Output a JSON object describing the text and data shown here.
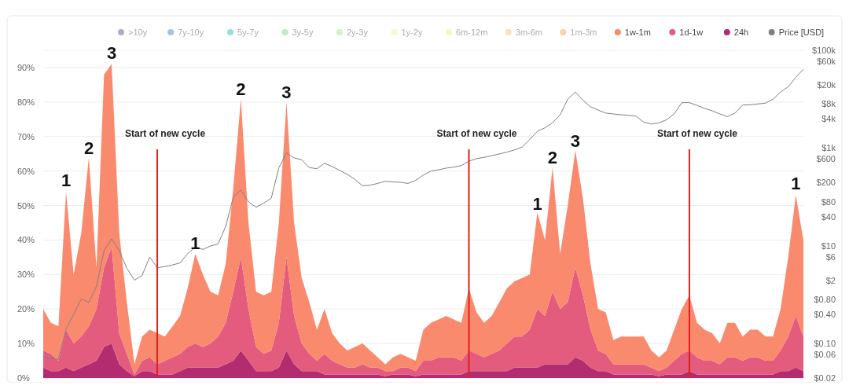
{
  "chart_data": {
    "type": "area",
    "stacked": true,
    "ylim": [
      0,
      95
    ],
    "yticks": [
      {
        "value": 0,
        "label": "0%"
      },
      {
        "value": 10,
        "label": "10%"
      },
      {
        "value": 20,
        "label": "20%"
      },
      {
        "value": 30,
        "label": "30%"
      },
      {
        "value": 40,
        "label": "40%"
      },
      {
        "value": 50,
        "label": "50%"
      },
      {
        "value": 60,
        "label": "60%"
      },
      {
        "value": 70,
        "label": "70%"
      },
      {
        "value": 80,
        "label": "80%"
      },
      {
        "value": 90,
        "label": "90%"
      }
    ],
    "y2lim": [
      0.02,
      100000
    ],
    "log": "y2",
    "y2ticks": [
      {
        "value": 0.02,
        "label": "$0.02"
      },
      {
        "value": 0.06,
        "label": "$0.06"
      },
      {
        "value": 0.1,
        "label": "$0.10"
      },
      {
        "value": 0.4,
        "label": "$0.40"
      },
      {
        "value": 0.8,
        "label": "$0.80"
      },
      {
        "value": 2,
        "label": "$2"
      },
      {
        "value": 6,
        "label": "$6"
      },
      {
        "value": 10,
        "label": "$10"
      },
      {
        "value": 40,
        "label": "$40"
      },
      {
        "value": 80,
        "label": "$80"
      },
      {
        "value": 200,
        "label": "$200"
      },
      {
        "value": 600,
        "label": "$600"
      },
      {
        "value": 1000,
        "label": "$1k"
      },
      {
        "value": 4000,
        "label": "$4k"
      },
      {
        "value": 8000,
        "label": "$8k"
      },
      {
        "value": 20000,
        "label": "$20k"
      },
      {
        "value": 60000,
        "label": "$60k"
      },
      {
        "value": 100000,
        "label": "$100k"
      }
    ],
    "tick_labels": "y",
    "grid": "y",
    "legend": "top",
    "categories": [
      null,
      null,
      null,
      null,
      null,
      null,
      null,
      null,
      null,
      null,
      null,
      null,
      null,
      null,
      null,
      null,
      null,
      null,
      null,
      null,
      null,
      null,
      null,
      null,
      null,
      null,
      null,
      null,
      null,
      null,
      null,
      null,
      null,
      null,
      null,
      null,
      null,
      null,
      null,
      null,
      null,
      null,
      null,
      null,
      null,
      null,
      null,
      null,
      null,
      null,
      null,
      null,
      null,
      null,
      null,
      null,
      null,
      null,
      null,
      null,
      null,
      null,
      null,
      null,
      null,
      null,
      null,
      null,
      null,
      null,
      null,
      null,
      null,
      null,
      null,
      null,
      null,
      null,
      null,
      null,
      null,
      null,
      null,
      null,
      null,
      null,
      null,
      null,
      null,
      null,
      null,
      null,
      null,
      null,
      null,
      null,
      null,
      null,
      null,
      null,
      null
    ],
    "series": [
      {
        "name": "24h",
        "color": "#b42c70",
        "values": [
          3,
          2,
          2,
          3,
          2,
          3,
          4,
          5,
          9,
          10,
          4,
          2,
          0.5,
          2,
          2,
          1,
          1,
          1,
          2,
          3,
          3,
          3,
          3,
          3,
          4,
          5,
          8,
          5,
          2,
          2,
          2,
          3,
          8,
          4,
          2,
          2,
          2,
          1,
          1,
          1,
          1,
          1,
          1,
          1,
          1,
          0.5,
          1,
          1,
          1,
          0.5,
          1,
          1,
          1,
          1,
          1,
          1,
          2,
          2,
          2,
          2,
          2,
          2,
          3,
          3,
          3,
          3,
          4,
          4,
          4,
          4,
          6,
          5,
          3,
          2,
          2,
          1,
          1,
          1,
          1,
          1,
          1,
          0.5,
          1,
          1,
          1,
          2,
          1,
          1,
          1,
          1,
          1,
          1,
          1,
          1,
          1,
          1,
          1,
          2,
          2,
          3,
          2
        ]
      },
      {
        "name": "1d-1w",
        "color": "#e35c7d",
        "values": [
          5,
          5,
          3,
          11,
          8,
          9,
          11,
          15,
          23,
          28,
          9,
          5,
          0.5,
          3,
          4,
          3,
          4,
          5,
          5,
          6,
          7,
          6,
          7,
          9,
          12,
          20,
          27,
          15,
          7,
          5,
          6,
          13,
          27,
          14,
          8,
          5,
          3,
          6,
          4,
          3,
          2,
          2,
          3,
          2,
          2,
          1.5,
          1,
          2,
          2,
          1.5,
          4,
          4,
          5,
          5,
          5,
          4,
          6,
          5,
          4,
          5,
          6,
          8,
          9,
          9,
          11,
          17,
          14,
          21,
          16,
          18,
          26,
          19,
          11,
          6,
          5,
          3,
          3,
          3,
          3,
          3,
          2,
          1.5,
          2,
          4,
          6,
          6,
          5,
          4,
          4,
          3,
          5,
          5,
          4,
          5,
          5,
          4,
          4,
          6,
          10,
          15,
          10
        ]
      },
      {
        "name": "1w-1m",
        "color": "#fa8a6e",
        "values": [
          12,
          9,
          10,
          40,
          20,
          30,
          49,
          12,
          56,
          53,
          29,
          15,
          3,
          7,
          8,
          9,
          7,
          9,
          11,
          17,
          26,
          21,
          15,
          12,
          17,
          30,
          46,
          25,
          16,
          17,
          17,
          29,
          45,
          27,
          19,
          15,
          9,
          13,
          8,
          6,
          5,
          6,
          6,
          5,
          3,
          2,
          4,
          4,
          3,
          3,
          9,
          11,
          11,
          12,
          11,
          11,
          18,
          12,
          10,
          11,
          14,
          16,
          16,
          17,
          16,
          28,
          22,
          36,
          16,
          28,
          34,
          28,
          19,
          12,
          12,
          7,
          8,
          8,
          8,
          8,
          5,
          4,
          5,
          9,
          13,
          16,
          10,
          9,
          8,
          6,
          10,
          10,
          7,
          8,
          8,
          7,
          7,
          12,
          23,
          35,
          28
        ]
      },
      {
        "name": "1m-3m",
        "color": "#f59a40",
        "values": [
          null,
          null,
          null,
          null,
          null,
          null,
          null,
          null,
          null,
          null,
          null,
          null,
          null,
          null,
          null,
          null,
          null,
          null,
          null,
          null,
          null,
          null,
          null,
          null,
          null,
          null,
          null,
          null,
          null,
          null,
          null,
          null,
          null,
          null,
          null,
          null,
          null,
          null,
          null,
          null,
          null,
          null,
          null,
          null,
          null,
          null,
          null,
          null,
          null,
          null,
          null,
          null,
          null,
          null,
          null,
          null,
          null,
          null,
          null,
          null,
          null,
          null,
          null,
          null,
          null,
          null,
          null,
          null,
          null,
          null,
          null,
          null,
          null,
          null,
          null,
          null,
          null,
          null,
          null,
          null,
          null,
          null,
          null,
          null,
          null,
          null,
          null,
          null,
          null,
          null,
          null,
          null,
          null,
          null,
          null,
          null,
          null,
          null,
          null,
          null,
          null
        ]
      },
      {
        "name": "3m-6m",
        "color": "#f8c060",
        "values": [
          null,
          null,
          null,
          null,
          null,
          null,
          null,
          null,
          null,
          null,
          null,
          null,
          null,
          null,
          null,
          null,
          null,
          null,
          null,
          null,
          null,
          null,
          null,
          null,
          null,
          null,
          null,
          null,
          null,
          null,
          null,
          null,
          null,
          null,
          null,
          null,
          null,
          null,
          null,
          null,
          null,
          null,
          null,
          null,
          null,
          null,
          null,
          null,
          null,
          null,
          null,
          null,
          null,
          null,
          null,
          null,
          null,
          null,
          null,
          null,
          null,
          null,
          null,
          null,
          null,
          null,
          null,
          null,
          null,
          null,
          null,
          null,
          null,
          null,
          null,
          null,
          null,
          null,
          null,
          null,
          null,
          null,
          null,
          null,
          null,
          null,
          null,
          null,
          null,
          null,
          null,
          null,
          null,
          null,
          null,
          null,
          null,
          null,
          null,
          null,
          null
        ]
      },
      {
        "name": "6m-12m",
        "color": "#f8e878",
        "values": [
          null,
          null,
          null,
          null,
          null,
          null,
          null,
          null,
          null,
          null,
          null,
          null,
          null,
          null,
          null,
          null,
          null,
          null,
          null,
          null,
          null,
          null,
          null,
          null,
          null,
          null,
          null,
          null,
          null,
          null,
          null,
          null,
          null,
          null,
          null,
          null,
          null,
          null,
          null,
          null,
          null,
          null,
          null,
          null,
          null,
          null,
          null,
          null,
          null,
          null,
          null,
          null,
          null,
          null,
          null,
          null,
          null,
          null,
          null,
          null,
          null,
          null,
          null,
          null,
          null,
          null,
          null,
          null,
          null,
          null,
          null,
          null,
          null,
          null,
          null,
          null,
          null,
          null,
          null,
          null,
          null,
          null,
          null,
          null,
          null,
          null,
          null,
          null,
          null,
          null,
          null,
          null,
          null,
          null,
          null,
          null,
          null,
          null,
          null,
          null,
          null
        ]
      },
      {
        "name": "1y-2y",
        "color": "#e8f590",
        "values": [
          null,
          null,
          null,
          null,
          null,
          null,
          null,
          null,
          null,
          null,
          null,
          null,
          null,
          null,
          null,
          null,
          null,
          null,
          null,
          null,
          null,
          null,
          null,
          null,
          null,
          null,
          null,
          null,
          null,
          null,
          null,
          null,
          null,
          null,
          null,
          null,
          null,
          null,
          null,
          null,
          null,
          null,
          null,
          null,
          null,
          null,
          null,
          null,
          null,
          null,
          null,
          null,
          null,
          null,
          null,
          null,
          null,
          null,
          null,
          null,
          null,
          null,
          null,
          null,
          null,
          null,
          null,
          null,
          null,
          null,
          null,
          null,
          null,
          null,
          null,
          null,
          null,
          null,
          null,
          null,
          null,
          null,
          null,
          null,
          null,
          null,
          null,
          null,
          null,
          null,
          null,
          null,
          null,
          null,
          null,
          null,
          null,
          null,
          null,
          null,
          null
        ]
      },
      {
        "name": "2y-3y",
        "color": "#a8e07a",
        "values": [
          null,
          null,
          null,
          null,
          null,
          null,
          null,
          null,
          null,
          null,
          null,
          null,
          null,
          null,
          null,
          null,
          null,
          null,
          null,
          null,
          null,
          null,
          null,
          null,
          null,
          null,
          null,
          null,
          null,
          null,
          null,
          null,
          null,
          null,
          null,
          null,
          null,
          null,
          null,
          null,
          null,
          null,
          null,
          null,
          null,
          null,
          null,
          null,
          null,
          null,
          null,
          null,
          null,
          null,
          null,
          null,
          null,
          null,
          null,
          null,
          null,
          null,
          null,
          null,
          null,
          null,
          null,
          null,
          null,
          null,
          null,
          null,
          null,
          null,
          null,
          null,
          null,
          null,
          null,
          null,
          null,
          null,
          null,
          null,
          null,
          null,
          null,
          null,
          null,
          null,
          null,
          null,
          null,
          null,
          null,
          null,
          null,
          null,
          null,
          null,
          null
        ]
      },
      {
        "name": "3y-5y",
        "color": "#6ed38a",
        "values": [
          null,
          null,
          null,
          null,
          null,
          null,
          null,
          null,
          null,
          null,
          null,
          null,
          null,
          null,
          null,
          null,
          null,
          null,
          null,
          null,
          null,
          null,
          null,
          null,
          null,
          null,
          null,
          null,
          null,
          null,
          null,
          null,
          null,
          null,
          null,
          null,
          null,
          null,
          null,
          null,
          null,
          null,
          null,
          null,
          null,
          null,
          null,
          null,
          null,
          null,
          null,
          null,
          null,
          null,
          null,
          null,
          null,
          null,
          null,
          null,
          null,
          null,
          null,
          null,
          null,
          null,
          null,
          null,
          null,
          null,
          null,
          null,
          null,
          null,
          null,
          null,
          null,
          null,
          null,
          null,
          null,
          null,
          null,
          null,
          null,
          null,
          null,
          null,
          null,
          null,
          null,
          null,
          null,
          null,
          null,
          null,
          null,
          null,
          null,
          null,
          null
        ]
      },
      {
        "name": "5y-7y",
        "color": "#1fb3b0",
        "values": [
          null,
          null,
          null,
          null,
          null,
          null,
          null,
          null,
          null,
          null,
          null,
          null,
          null,
          null,
          null,
          null,
          null,
          null,
          null,
          null,
          null,
          null,
          null,
          null,
          null,
          null,
          null,
          null,
          null,
          null,
          null,
          null,
          null,
          null,
          null,
          null,
          null,
          null,
          null,
          null,
          null,
          null,
          null,
          null,
          null,
          null,
          null,
          null,
          null,
          null,
          null,
          null,
          null,
          null,
          null,
          null,
          null,
          null,
          null,
          null,
          null,
          null,
          null,
          null,
          null,
          null,
          null,
          null,
          null,
          null,
          null,
          null,
          null,
          null,
          null,
          null,
          null,
          null,
          null,
          null,
          null,
          null,
          null,
          null,
          null,
          null,
          null,
          null,
          null,
          null,
          null,
          null,
          null,
          null,
          null,
          null,
          null,
          null,
          null,
          null,
          null
        ]
      },
      {
        "name": "7y-10y",
        "color": "#2f7fc1",
        "values": [
          null,
          null,
          null,
          null,
          null,
          null,
          null,
          null,
          null,
          null,
          null,
          null,
          null,
          null,
          null,
          null,
          null,
          null,
          null,
          null,
          null,
          null,
          null,
          null,
          null,
          null,
          null,
          null,
          null,
          null,
          null,
          null,
          null,
          null,
          null,
          null,
          null,
          null,
          null,
          null,
          null,
          null,
          null,
          null,
          null,
          null,
          null,
          null,
          null,
          null,
          null,
          null,
          null,
          null,
          null,
          null,
          null,
          null,
          null,
          null,
          null,
          null,
          null,
          null,
          null,
          null,
          null,
          null,
          null,
          null,
          null,
          null,
          null,
          null,
          null,
          null,
          null,
          null,
          null,
          null,
          null,
          null,
          null,
          null,
          null,
          null,
          null,
          null,
          null,
          null,
          null,
          null,
          null,
          null,
          null,
          null,
          null,
          null,
          null,
          null,
          null
        ]
      },
      {
        "name": ">10y",
        "color": "#5b3fa0",
        "values": [
          null,
          null,
          null,
          null,
          null,
          null,
          null,
          null,
          null,
          null,
          null,
          null,
          null,
          null,
          null,
          null,
          null,
          null,
          null,
          null,
          null,
          null,
          null,
          null,
          null,
          null,
          null,
          null,
          null,
          null,
          null,
          null,
          null,
          null,
          null,
          null,
          null,
          null,
          null,
          null,
          null,
          null,
          null,
          null,
          null,
          null,
          null,
          null,
          null,
          null,
          null,
          null,
          null,
          null,
          null,
          null,
          null,
          null,
          null,
          null,
          null,
          null,
          null,
          null,
          null,
          null,
          null,
          null,
          null,
          null,
          null,
          null,
          null,
          null,
          null,
          null,
          null,
          null,
          null,
          null,
          null,
          null,
          null,
          null,
          null,
          null,
          null,
          null,
          null,
          null,
          null,
          null,
          null,
          null,
          null,
          null,
          null,
          null,
          null,
          null,
          null
        ]
      },
      {
        "name": "Price [USD]",
        "type": "line",
        "axis": "y2",
        "color": "#808080",
        "values": [
          0.056,
          0.05,
          0.048,
          0.2,
          0.4,
          0.83,
          0.7,
          1.5,
          8,
          14,
          8,
          3.5,
          2,
          2.5,
          5.9,
          3.6,
          3.8,
          4.1,
          4.5,
          7,
          9.5,
          8.5,
          10,
          11,
          25,
          100,
          140,
          80,
          62,
          75,
          95,
          400,
          800,
          630,
          580,
          400,
          380,
          490,
          420,
          350,
          290,
          230,
          170,
          175,
          190,
          210,
          205,
          200,
          190,
          220,
          280,
          340,
          360,
          390,
          410,
          440,
          540,
          610,
          650,
          700,
          760,
          830,
          920,
          1050,
          1500,
          2200,
          2600,
          3300,
          4800,
          10000,
          14000,
          9500,
          7000,
          6000,
          5200,
          5000,
          4800,
          4700,
          4500,
          3400,
          3100,
          3300,
          3800,
          5000,
          8500,
          8500,
          7500,
          6500,
          5800,
          5000,
          4400,
          5200,
          7600,
          7700,
          8000,
          8300,
          10000,
          14000,
          18000,
          28000,
          41000
        ]
      }
    ],
    "annotations": [
      "Start of new cycle",
      "Start of new cycle",
      "Start of new cycle",
      "1",
      "2",
      "3",
      "1",
      "2",
      "3",
      "1",
      "2",
      "3",
      "1"
    ]
  }
}
